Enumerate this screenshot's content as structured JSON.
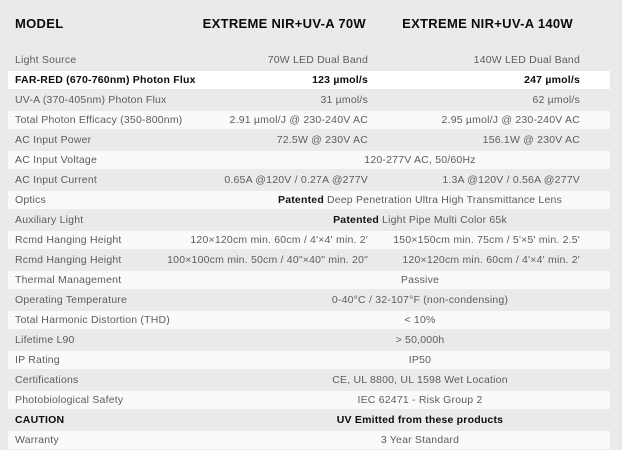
{
  "table": {
    "header": {
      "model": "MODEL",
      "col_70w": "EXTREME NIR+UV-A 70W",
      "col_140w": "EXTREME NIR+UV-A 140W"
    },
    "rows": [
      {
        "label": "Light Source",
        "v70": "70W LED Dual Band",
        "v140": "140W LED Dual Band"
      },
      {
        "label": "FAR-RED (670-760nm) Photon Flux",
        "v70": "123 µmol/s",
        "v140": "247 µmol/s"
      },
      {
        "label": "UV-A (370-405nm) Photon Flux",
        "v70": "31 µmol/s",
        "v140": "62 µmol/s"
      },
      {
        "label": "Total Photon Efficacy (350-800nm)",
        "v70": "2.91 µmol/J @ 230-240V AC",
        "v140": "2.95 µmol/J @ 230-240V AC"
      },
      {
        "label": "AC Input Power",
        "v70": "72.5W @ 230V AC",
        "v140": "156.1W @ 230V AC"
      },
      {
        "label": "AC Input Voltage",
        "span": "120-277V AC, 50/60Hz"
      },
      {
        "label": "AC Input Current",
        "v70": "0.65A @120V / 0.27A @277V",
        "v140": "1.3A @120V / 0.56A @277V"
      },
      {
        "label": "Optics",
        "span_bold": "Patented",
        "span": "Deep Penetration Ultra High Transmittance Lens"
      },
      {
        "label": "Auxiliary Light",
        "span_bold": "Patented",
        "span": "Light Pipe Multi Color 65k"
      },
      {
        "label": "Rcmd Hanging Height",
        "v70": "120×120cm min. 60cm / 4'×4' min. 2'",
        "v140": "150×150cm min. 75cm /  5'×5' min. 2.5'"
      },
      {
        "label": "Rcmd Hanging Height",
        "v70": "100×100cm min. 50cm / 40\"×40\" min. 20\"",
        "v140": "120×120cm min. 60cm / 4'×4' min. 2'"
      },
      {
        "label": "Thermal Management",
        "span": "Passive"
      },
      {
        "label": "Operating Temperature",
        "span": "0-40°C / 32-107°F (non-condensing)"
      },
      {
        "label": "Total Harmonic Distortion (THD)",
        "span": "< 10%"
      },
      {
        "label": "Lifetime L90",
        "span": "> 50,000h"
      },
      {
        "label": "IP Rating",
        "span": "IP50"
      },
      {
        "label": "Certifications",
        "span": "CE, UL 8800, UL 1598 Wet Location"
      },
      {
        "label": "Photobiological Safety",
        "span": "IEC 62471 - Risk Group 2"
      },
      {
        "label": "CAUTION",
        "span": "UV Emitted from these products"
      },
      {
        "label": "Warranty",
        "span": "3 Year Standard"
      }
    ],
    "colors": {
      "page_bg": "#e9eaea",
      "band": "#fafafa",
      "highlight_row": "#ffffff",
      "text": "#5b5d60",
      "bold_text": "#0c0c0c"
    }
  }
}
